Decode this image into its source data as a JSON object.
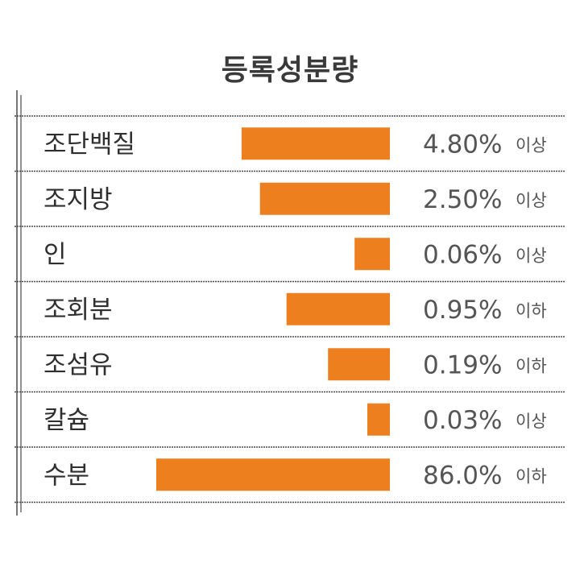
{
  "colors": {
    "bar": "#ee7f1f",
    "rule": "#4a4a4a",
    "text": "#333333"
  },
  "chart_data": {
    "type": "bar",
    "orientation": "horizontal",
    "bar_alignment": "right",
    "title": "등록성분량",
    "categories": [
      "조단백질",
      "조지방",
      "인",
      "조회분",
      "조섬유",
      "칼슘",
      "수분"
    ],
    "values": [
      4.8,
      2.5,
      0.06,
      0.95,
      0.19,
      0.03,
      86.0
    ],
    "value_labels": [
      "4.80%",
      "2.50%",
      "0.06%",
      "0.95%",
      "0.19%",
      "0.03%",
      "86.0%"
    ],
    "qualifiers": [
      "이상",
      "이상",
      "이상",
      "이하",
      "이하",
      "이상",
      "이하"
    ],
    "unit": "%",
    "axis_scale": "non-linear",
    "grid": true,
    "legend": "none"
  }
}
